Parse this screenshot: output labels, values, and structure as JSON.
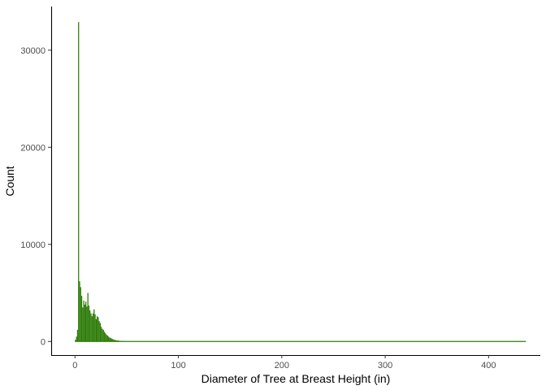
{
  "chart_data": {
    "type": "bar",
    "title": "",
    "xlabel": "Diameter of Tree at Breast Height (in)",
    "ylabel": "Count",
    "xlim": [
      -23,
      450
    ],
    "ylim": [
      -1400,
      34500
    ],
    "x_ticks": [
      0,
      100,
      200,
      300,
      400
    ],
    "y_ticks": [
      0,
      10000,
      20000,
      30000
    ],
    "x_tick_labels": [
      "0",
      "100",
      "200",
      "300",
      "400"
    ],
    "y_tick_labels": [
      "0",
      "10000",
      "20000",
      "30000"
    ],
    "bin_width": 1,
    "bar_color": "#2f7d0a",
    "grid": false,
    "x": [
      0,
      1,
      2,
      3,
      4,
      5,
      6,
      7,
      8,
      9,
      10,
      11,
      12,
      13,
      14,
      15,
      16,
      17,
      18,
      19,
      20,
      21,
      22,
      23,
      24,
      25,
      26,
      27,
      28,
      29,
      30,
      31,
      32,
      33,
      34,
      35,
      36,
      37,
      38,
      39,
      40,
      41,
      42,
      43,
      44,
      45,
      46,
      47,
      48,
      49,
      50,
      52,
      55,
      58,
      60,
      65,
      70,
      75,
      80,
      90,
      100,
      120,
      150,
      180,
      250,
      320,
      435
    ],
    "values": [
      180,
      500,
      1200,
      32900,
      6200,
      5600,
      4700,
      3500,
      4200,
      3800,
      4100,
      3600,
      5000,
      3700,
      3200,
      2900,
      2600,
      2900,
      3300,
      2800,
      2300,
      2600,
      2500,
      2100,
      1900,
      1500,
      1300,
      1200,
      1000,
      850,
      700,
      600,
      500,
      420,
      350,
      300,
      250,
      200,
      160,
      130,
      110,
      95,
      80,
      65,
      55,
      48,
      40,
      34,
      28,
      24,
      20,
      15,
      12,
      10,
      9,
      7,
      6,
      5,
      4,
      3,
      3,
      2,
      2,
      2,
      1,
      1,
      1
    ]
  }
}
